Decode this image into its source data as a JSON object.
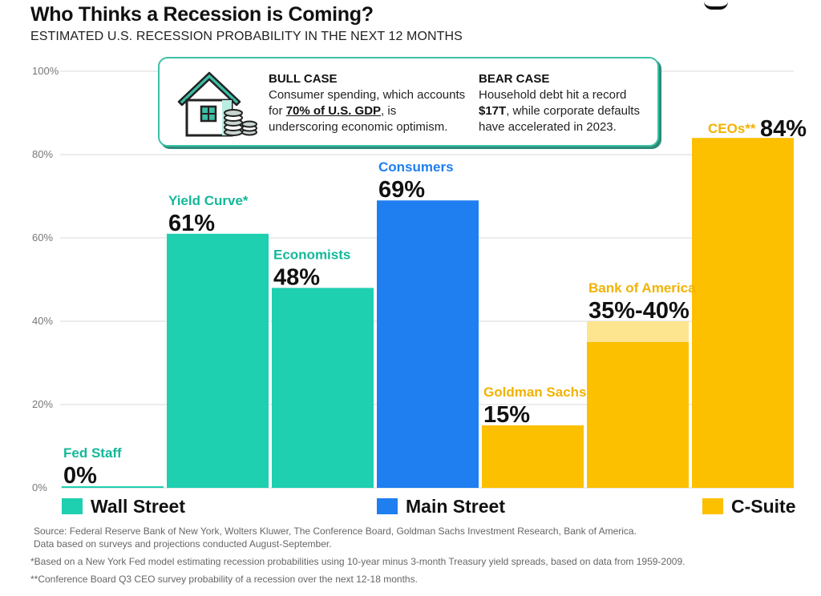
{
  "chart_data": {
    "type": "bar",
    "title": "Who Thinks a Recession is Coming?",
    "subtitle": "ESTIMATED U.S. RECESSION PROBABILITY IN THE NEXT 12 MONTHS",
    "ylim": [
      0,
      100
    ],
    "yticks": [
      "0%",
      "20%",
      "40%",
      "60%",
      "80%",
      "100%"
    ],
    "grid": true,
    "bars": [
      {
        "category": "Fed Staff",
        "value": 0,
        "value_label": "0%",
        "group": "Wall Street"
      },
      {
        "category": "Yield Curve*",
        "value": 61,
        "value_label": "61%",
        "group": "Wall Street"
      },
      {
        "category": "Economists",
        "value": 48,
        "value_label": "48%",
        "group": "Wall Street"
      },
      {
        "category": "Consumers",
        "value": 69,
        "value_label": "69%",
        "group": "Main Street"
      },
      {
        "category": "Goldman Sachs",
        "value": 15,
        "value_label": "15%",
        "group": "C-Suite"
      },
      {
        "category": "Bank of America",
        "value": 35,
        "value_high": 40,
        "value_label": "35%-40%",
        "group": "C-Suite"
      },
      {
        "category": "CEOs**",
        "value": 84,
        "value_label": "84%",
        "group": "C-Suite"
      }
    ],
    "legend": [
      {
        "name": "Wall Street",
        "color": "#1ecfb0"
      },
      {
        "name": "Main Street",
        "color": "#1f7ef0"
      },
      {
        "name": "C-Suite",
        "color": "#fcc000"
      }
    ],
    "colors": {
      "Wall Street": "#1ecfb0",
      "Wall Street Label": "#14b89a",
      "Main Street": "#1f7ef0",
      "C-Suite": "#fcc000",
      "C-Suite Light": "#fde590",
      "C-Suite Label": "#f2b200"
    }
  },
  "callout": {
    "icon": "house-with-coins-icon",
    "bull": {
      "title": "BULL CASE",
      "text_before": "Consumer spending, which accounts for ",
      "highlight": "70% of U.S. GDP",
      "text_after": ", is underscoring economic optimism."
    },
    "bear": {
      "title": "BEAR CASE",
      "text_before": "Household debt hit a record ",
      "highlight": "$17T",
      "text_after": ", while corporate defaults have accelerated in 2023."
    }
  },
  "footer": {
    "source": "Source: Federal Reserve Bank of New York, Wolters Kluwer, The Conference Board, Goldman Sachs Investment Research, Bank of America. Data based on surveys and projections conducted August-September.",
    "note1": "*Based on a New York Fed model estimating recession probabilities using 10-year minus 3-month Treasury yield spreads, based on data from 1959-2009.",
    "note2": "**Conference Board Q3 CEO survey probability of a recession over the next 12-18 months."
  }
}
